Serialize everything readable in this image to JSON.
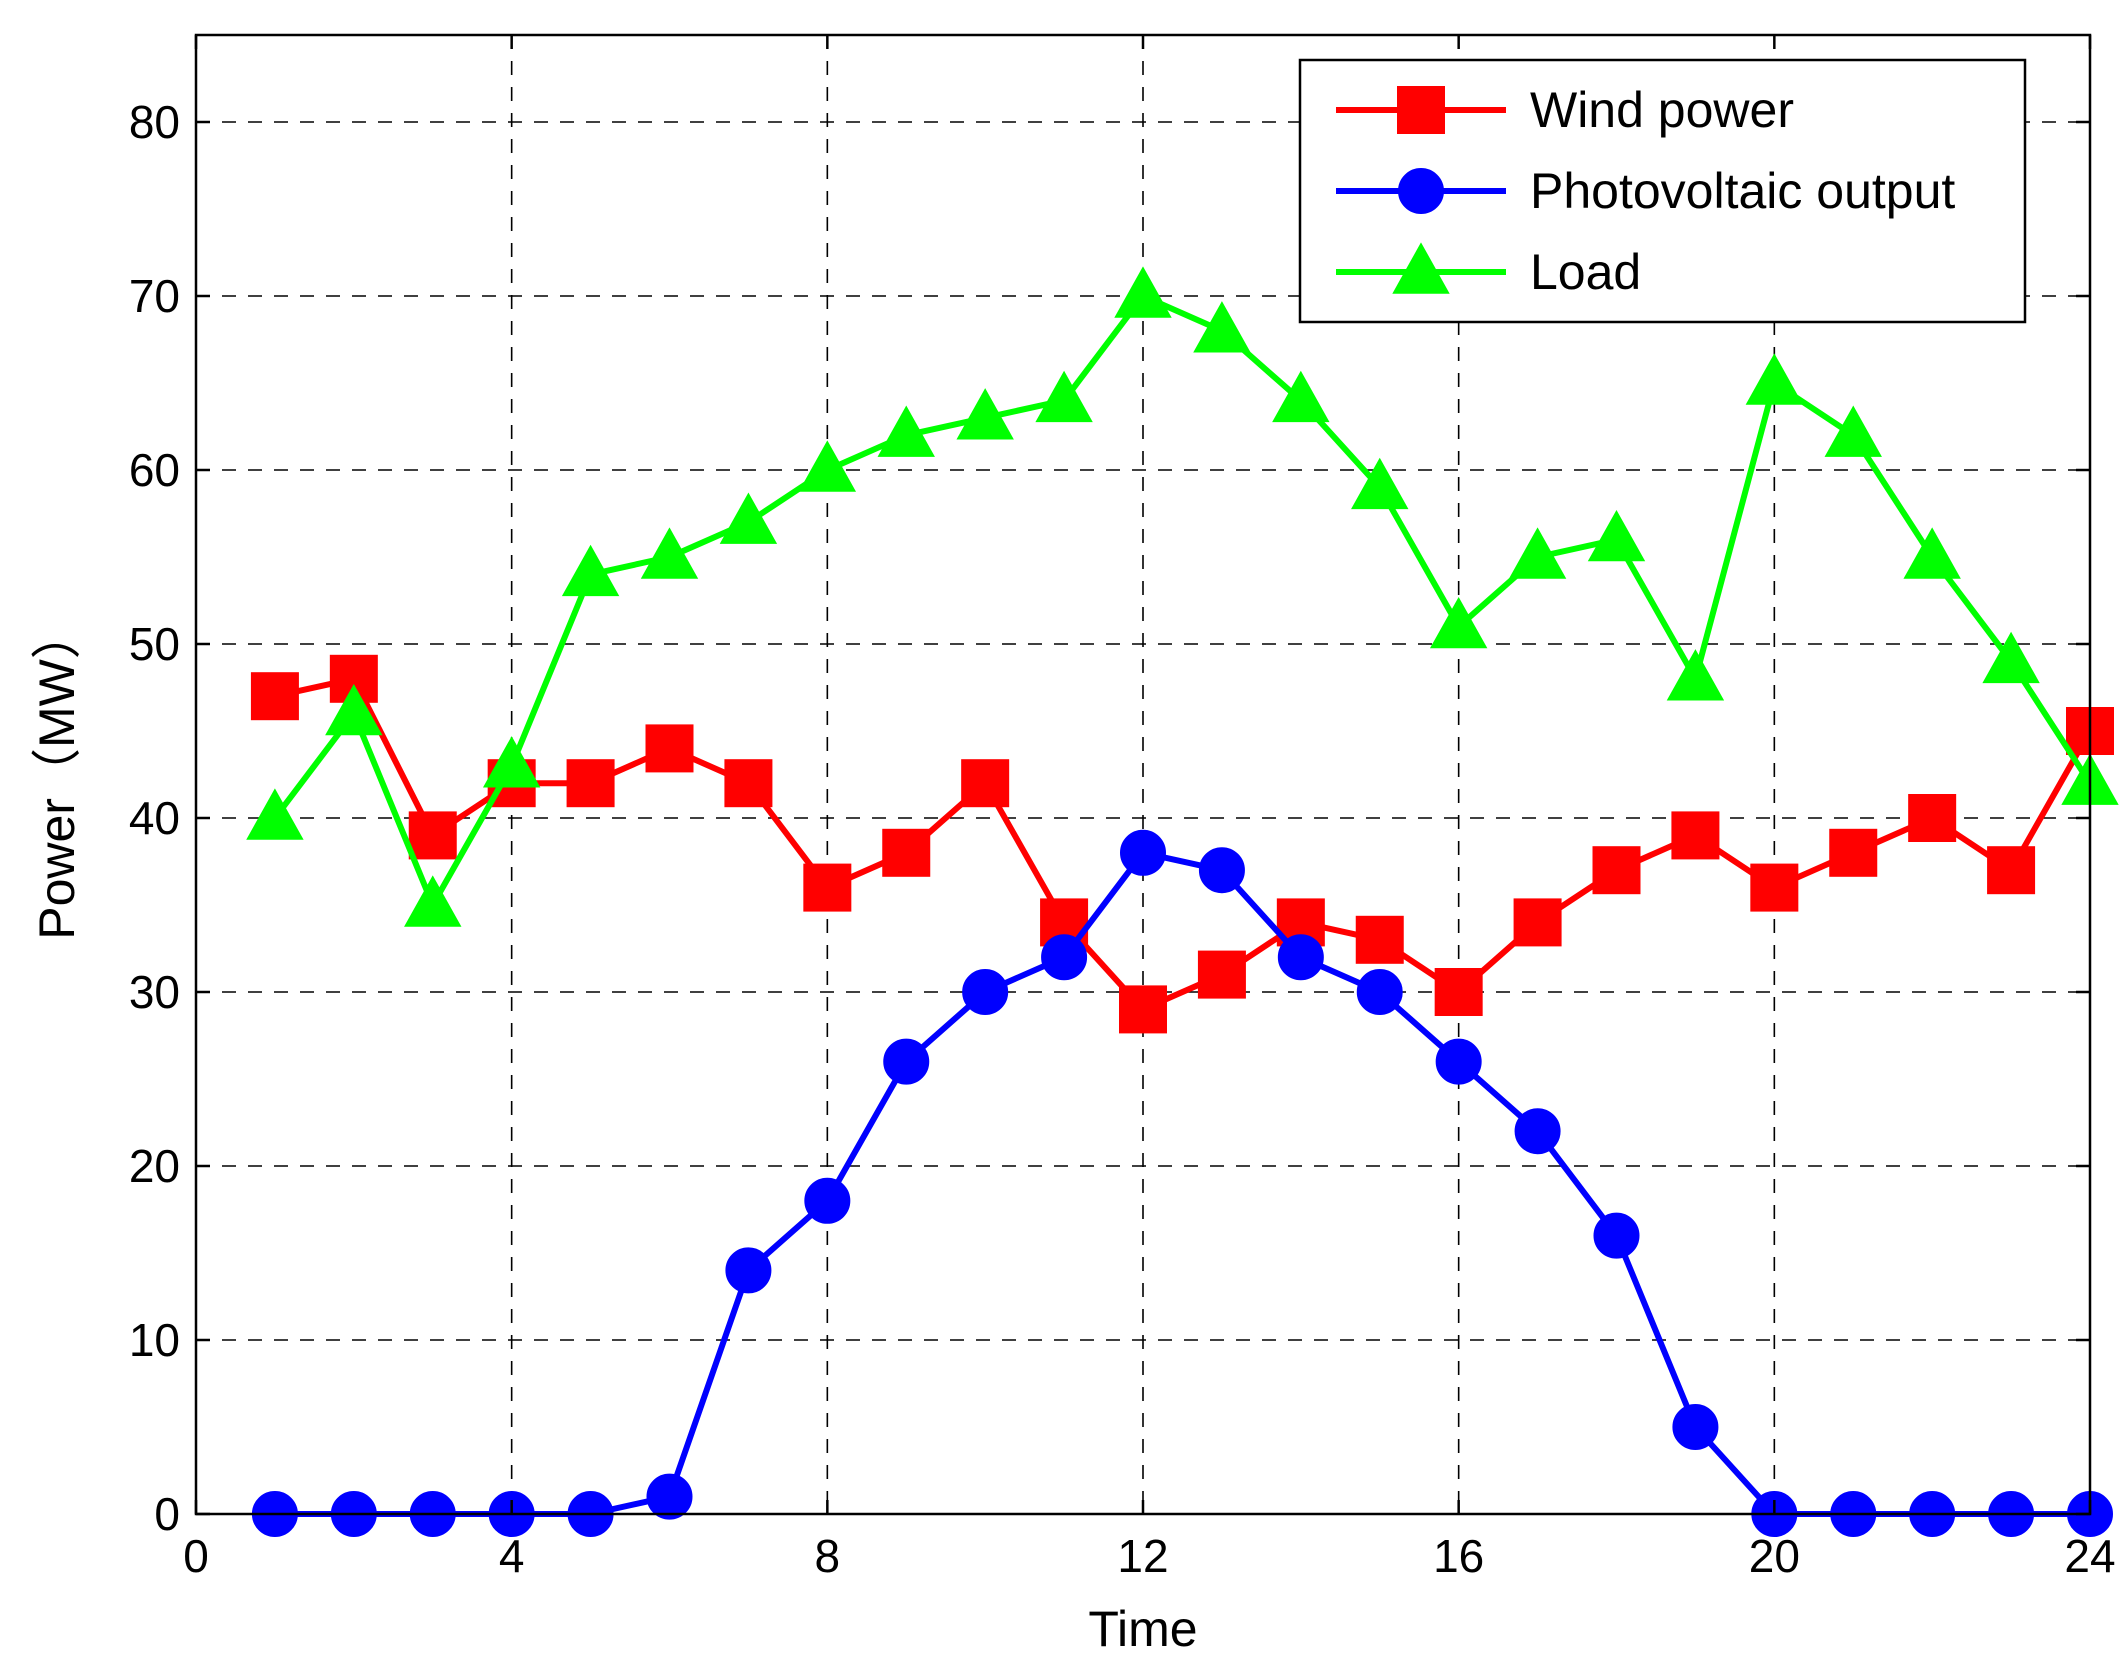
{
  "chart_data": {
    "type": "line",
    "title": "",
    "xlabel": "Time",
    "ylabel": "Power（MW）",
    "xlim": [
      0,
      24
    ],
    "ylim": [
      0,
      85
    ],
    "xticks": [
      0,
      4,
      8,
      12,
      16,
      20,
      24
    ],
    "yticks": [
      0,
      10,
      20,
      30,
      40,
      50,
      60,
      70,
      80
    ],
    "grid": true,
    "legend_position": "top-right",
    "x": [
      1,
      2,
      3,
      4,
      5,
      6,
      7,
      8,
      9,
      10,
      11,
      12,
      13,
      14,
      15,
      16,
      17,
      18,
      19,
      20,
      21,
      22,
      23,
      24
    ],
    "series": [
      {
        "name": "Wind power",
        "color": "#ff0000",
        "marker": "square",
        "values": [
          47,
          48,
          39,
          42,
          42,
          44,
          42,
          36,
          38,
          42,
          34,
          29,
          31,
          34,
          33,
          30,
          34,
          37,
          39,
          36,
          38,
          40,
          37,
          45
        ]
      },
      {
        "name": "Photovoltaic output",
        "color": "#0000ff",
        "marker": "circle",
        "values": [
          0,
          0,
          0,
          0,
          0,
          1,
          14,
          18,
          26,
          30,
          32,
          38,
          37,
          32,
          30,
          26,
          22,
          16,
          5,
          0,
          0,
          0,
          0,
          0
        ]
      },
      {
        "name": "Load",
        "color": "#00ff00",
        "marker": "triangle",
        "values": [
          40,
          46,
          35,
          43,
          54,
          55,
          57,
          60,
          62,
          63,
          64,
          70,
          68,
          64,
          59,
          51,
          55,
          56,
          48,
          65,
          62,
          55,
          49,
          42
        ]
      }
    ]
  }
}
